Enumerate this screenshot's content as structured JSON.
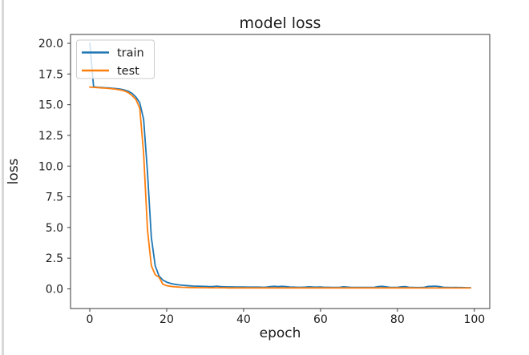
{
  "figure": {
    "background": "#ffffff",
    "window_edge_color": "#d8d8d8",
    "axis_color": "#3a3a3a",
    "text_color": "#1c1c1c"
  },
  "chart_data": {
    "type": "line",
    "title": "model loss",
    "xlabel": "epoch",
    "ylabel": "loss",
    "xlim": [
      -5,
      104
    ],
    "ylim": [
      -1.6,
      20.72
    ],
    "grid": false,
    "legend": {
      "position": "upper-left",
      "entries": [
        "train",
        "test"
      ]
    },
    "xticks": {
      "values": [
        0,
        20,
        40,
        60,
        80,
        100
      ],
      "labels": [
        "0",
        "20",
        "40",
        "60",
        "80",
        "100"
      ]
    },
    "yticks": {
      "values": [
        0,
        2.5,
        5,
        7.5,
        10,
        12.5,
        15,
        17.5,
        20
      ],
      "labels": [
        "0.0",
        "2.5",
        "5.0",
        "7.5",
        "10.0",
        "12.5",
        "15.0",
        "17.5",
        "20.0"
      ]
    },
    "x": [
      0,
      1,
      2,
      3,
      4,
      5,
      6,
      7,
      8,
      9,
      10,
      11,
      12,
      13,
      14,
      15,
      16,
      17,
      18,
      19,
      20,
      21,
      22,
      23,
      24,
      25,
      26,
      27,
      28,
      29,
      30,
      31,
      32,
      33,
      34,
      35,
      36,
      37,
      38,
      39,
      40,
      41,
      42,
      43,
      44,
      45,
      46,
      47,
      48,
      49,
      50,
      51,
      52,
      53,
      54,
      55,
      56,
      57,
      58,
      59,
      60,
      61,
      62,
      63,
      64,
      65,
      66,
      67,
      68,
      69,
      70,
      71,
      72,
      73,
      74,
      75,
      76,
      77,
      78,
      79,
      80,
      81,
      82,
      83,
      84,
      85,
      86,
      87,
      88,
      89,
      90,
      91,
      92,
      93,
      94,
      95,
      96,
      97,
      98,
      99
    ],
    "series": [
      {
        "name": "train",
        "color": "#1f77b4",
        "values": [
          20.0,
          16.45,
          16.42,
          16.4,
          16.38,
          16.36,
          16.33,
          16.3,
          16.26,
          16.2,
          16.1,
          15.92,
          15.62,
          15.15,
          13.8,
          9.5,
          4.2,
          1.9,
          1.05,
          0.72,
          0.55,
          0.45,
          0.38,
          0.33,
          0.3,
          0.27,
          0.25,
          0.23,
          0.22,
          0.21,
          0.2,
          0.19,
          0.18,
          0.22,
          0.18,
          0.17,
          0.16,
          0.16,
          0.15,
          0.15,
          0.15,
          0.14,
          0.14,
          0.14,
          0.14,
          0.13,
          0.14,
          0.19,
          0.21,
          0.18,
          0.21,
          0.19,
          0.15,
          0.14,
          0.13,
          0.13,
          0.14,
          0.17,
          0.15,
          0.14,
          0.15,
          0.13,
          0.13,
          0.12,
          0.12,
          0.13,
          0.17,
          0.14,
          0.12,
          0.12,
          0.12,
          0.12,
          0.12,
          0.12,
          0.13,
          0.19,
          0.21,
          0.17,
          0.13,
          0.12,
          0.12,
          0.17,
          0.19,
          0.13,
          0.12,
          0.11,
          0.11,
          0.13,
          0.2,
          0.21,
          0.22,
          0.18,
          0.13,
          0.12,
          0.11,
          0.12,
          0.11,
          0.11,
          0.1,
          0.1
        ]
      },
      {
        "name": "test",
        "color": "#ff7f0e",
        "values": [
          16.43,
          16.41,
          16.39,
          16.37,
          16.35,
          16.32,
          16.29,
          16.25,
          16.2,
          16.12,
          15.98,
          15.75,
          15.42,
          14.7,
          11.0,
          4.8,
          1.9,
          1.15,
          0.95,
          0.38,
          0.26,
          0.21,
          0.17,
          0.15,
          0.13,
          0.12,
          0.11,
          0.11,
          0.1,
          0.1,
          0.1,
          0.09,
          0.09,
          0.09,
          0.09,
          0.09,
          0.08,
          0.08,
          0.08,
          0.08,
          0.08,
          0.08,
          0.08,
          0.08,
          0.08,
          0.08,
          0.08,
          0.08,
          0.08,
          0.08,
          0.08,
          0.08,
          0.08,
          0.08,
          0.08,
          0.08,
          0.08,
          0.08,
          0.08,
          0.08,
          0.08,
          0.08,
          0.08,
          0.08,
          0.08,
          0.08,
          0.08,
          0.08,
          0.08,
          0.08,
          0.08,
          0.08,
          0.08,
          0.08,
          0.08,
          0.08,
          0.08,
          0.08,
          0.08,
          0.08,
          0.08,
          0.08,
          0.08,
          0.08,
          0.08,
          0.07,
          0.07,
          0.07,
          0.07,
          0.07,
          0.07,
          0.07,
          0.07,
          0.07,
          0.07,
          0.07,
          0.07,
          0.07,
          0.07,
          0.07
        ]
      }
    ]
  }
}
